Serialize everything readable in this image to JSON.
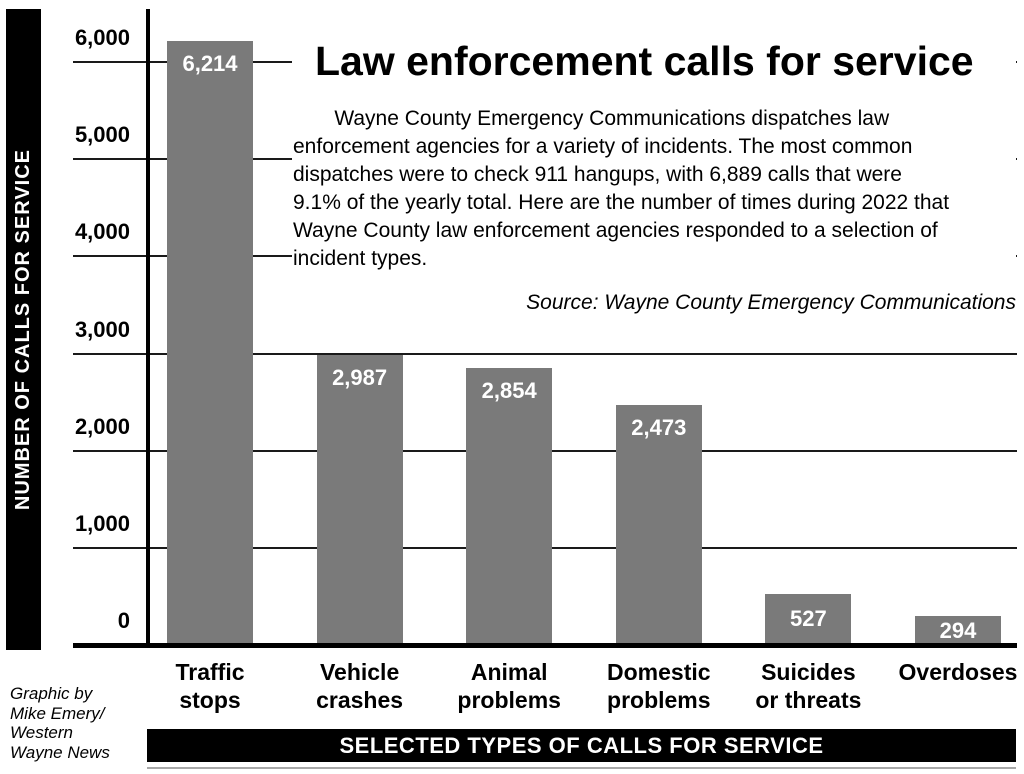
{
  "y_axis": {
    "title": "NUMBER OF CALLS FOR SERVICE",
    "tick_labels": [
      "6,000",
      "5,000",
      "4,000",
      "3,000",
      "2,000",
      "1,000",
      "0"
    ]
  },
  "x_axis": {
    "title": "SELECTED TYPES OF CALLS FOR SERVICE"
  },
  "header": {
    "title": "Law enforcement calls for service",
    "description_lines": [
      "    Wayne County Emergency Communications dispatches law",
      "enforcement agencies for a variety of incidents. The most common",
      "dispatches were to check 911 hangups, with 6,889 calls that were",
      "9.1% of the yearly total. Here are the number of times during 2022 that",
      "Wayne County law enforcement agencies responded to a selection of",
      "incident types."
    ],
    "source": "Source: Wayne County Emergency Communications"
  },
  "credit_lines": [
    "Graphic by",
    "Mike Emery/",
    "Western",
    "Wayne News"
  ],
  "chart_data": {
    "type": "bar",
    "title": "Law enforcement calls for service",
    "xlabel": "SELECTED TYPES OF CALLS FOR SERVICE",
    "ylabel": "NUMBER OF CALLS FOR SERVICE",
    "categories": [
      "Traffic stops",
      "Vehicle crashes",
      "Animal problems",
      "Domestic problems",
      "Suicides or threats",
      "Overdoses"
    ],
    "category_label_lines": [
      [
        "Traffic",
        "stops"
      ],
      [
        "Vehicle",
        "crashes"
      ],
      [
        "Animal",
        "problems"
      ],
      [
        "Domestic",
        "problems"
      ],
      [
        "Suicides",
        "or threats"
      ],
      [
        "Overdoses"
      ]
    ],
    "values": [
      6214,
      2987,
      2854,
      2473,
      527,
      294
    ],
    "value_labels": [
      "6,214",
      "2,987",
      "2,854",
      "2,473",
      "527",
      "294"
    ],
    "ylim": [
      0,
      6000
    ],
    "ytick_interval": 1000,
    "grid": true,
    "legend_position": "none",
    "bar_color": "#7a7a7a",
    "value_label_color": "#ffffff",
    "axis_color": "#000000"
  }
}
